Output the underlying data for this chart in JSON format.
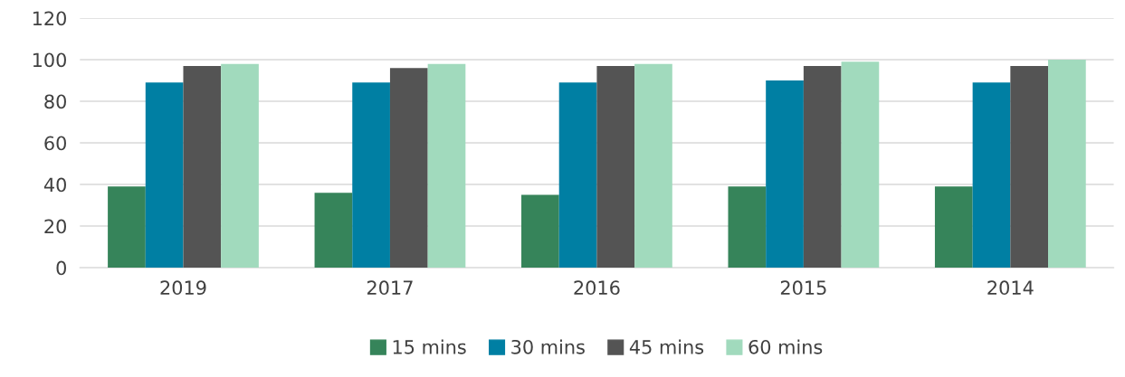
{
  "chart_data": {
    "type": "bar",
    "categories": [
      "2019",
      "2017",
      "2016",
      "2015",
      "2014"
    ],
    "series": [
      {
        "name": "15 mins",
        "color": "#36845a",
        "values": [
          39,
          36,
          35,
          39,
          39
        ]
      },
      {
        "name": "30 mins",
        "color": "#007fa3",
        "values": [
          89,
          89,
          89,
          90,
          89
        ]
      },
      {
        "name": "45 mins",
        "color": "#545454",
        "values": [
          97,
          96,
          97,
          97,
          97
        ]
      },
      {
        "name": "60 mins",
        "color": "#a1dabd",
        "values": [
          98,
          98,
          98,
          99,
          100
        ]
      }
    ],
    "ylim": [
      0,
      120
    ],
    "yticks": [
      0,
      20,
      40,
      60,
      80,
      100,
      120
    ],
    "grid": "y",
    "legend": "bottom"
  }
}
